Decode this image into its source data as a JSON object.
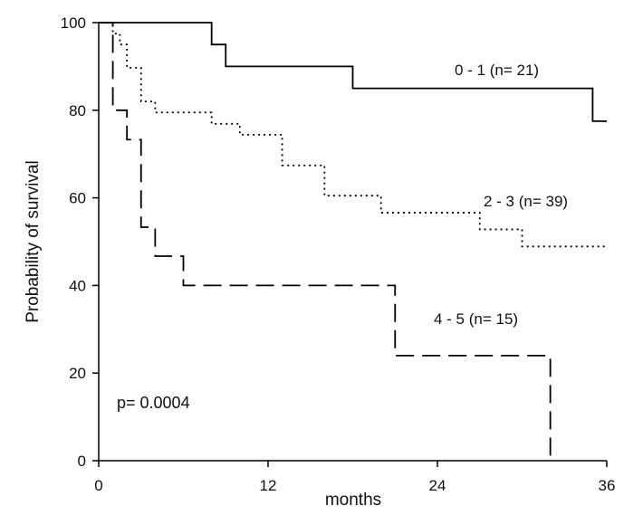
{
  "chart_data": {
    "type": "line",
    "subtype": "kaplan-meier step",
    "title": "",
    "xlabel": "months",
    "ylabel": "Probability of survival",
    "xlim": [
      0,
      36
    ],
    "ylim": [
      0,
      100
    ],
    "xticks": [
      0,
      12,
      24,
      36
    ],
    "yticks": [
      0,
      20,
      40,
      60,
      80,
      100
    ],
    "grid": false,
    "annotation": "p= 0.0004",
    "series": [
      {
        "name": "0 - 1 (n= 21)",
        "line_style": "solid",
        "x": [
          0,
          8,
          9,
          18,
          35,
          36
        ],
        "y": [
          100,
          95,
          90,
          85,
          77.5,
          77.5
        ]
      },
      {
        "name": "2 - 3 (n= 39)",
        "line_style": "dotted",
        "x": [
          0,
          1,
          1.5,
          2,
          3,
          4,
          8,
          10,
          13,
          16,
          20,
          27,
          30,
          36
        ],
        "y": [
          100,
          97.5,
          95,
          89.7,
          82,
          79.5,
          76.9,
          74.4,
          67.4,
          60.5,
          56.6,
          52.8,
          48.9,
          48.9
        ]
      },
      {
        "name": "4 - 5 (n= 15)",
        "line_style": "dashed",
        "x": [
          0,
          1,
          2,
          3,
          4,
          6,
          21,
          32
        ],
        "y": [
          100,
          80,
          73.3,
          53.3,
          46.7,
          40,
          24,
          0
        ]
      }
    ]
  },
  "colors": {
    "line": "#000000",
    "background": "#ffffff"
  }
}
